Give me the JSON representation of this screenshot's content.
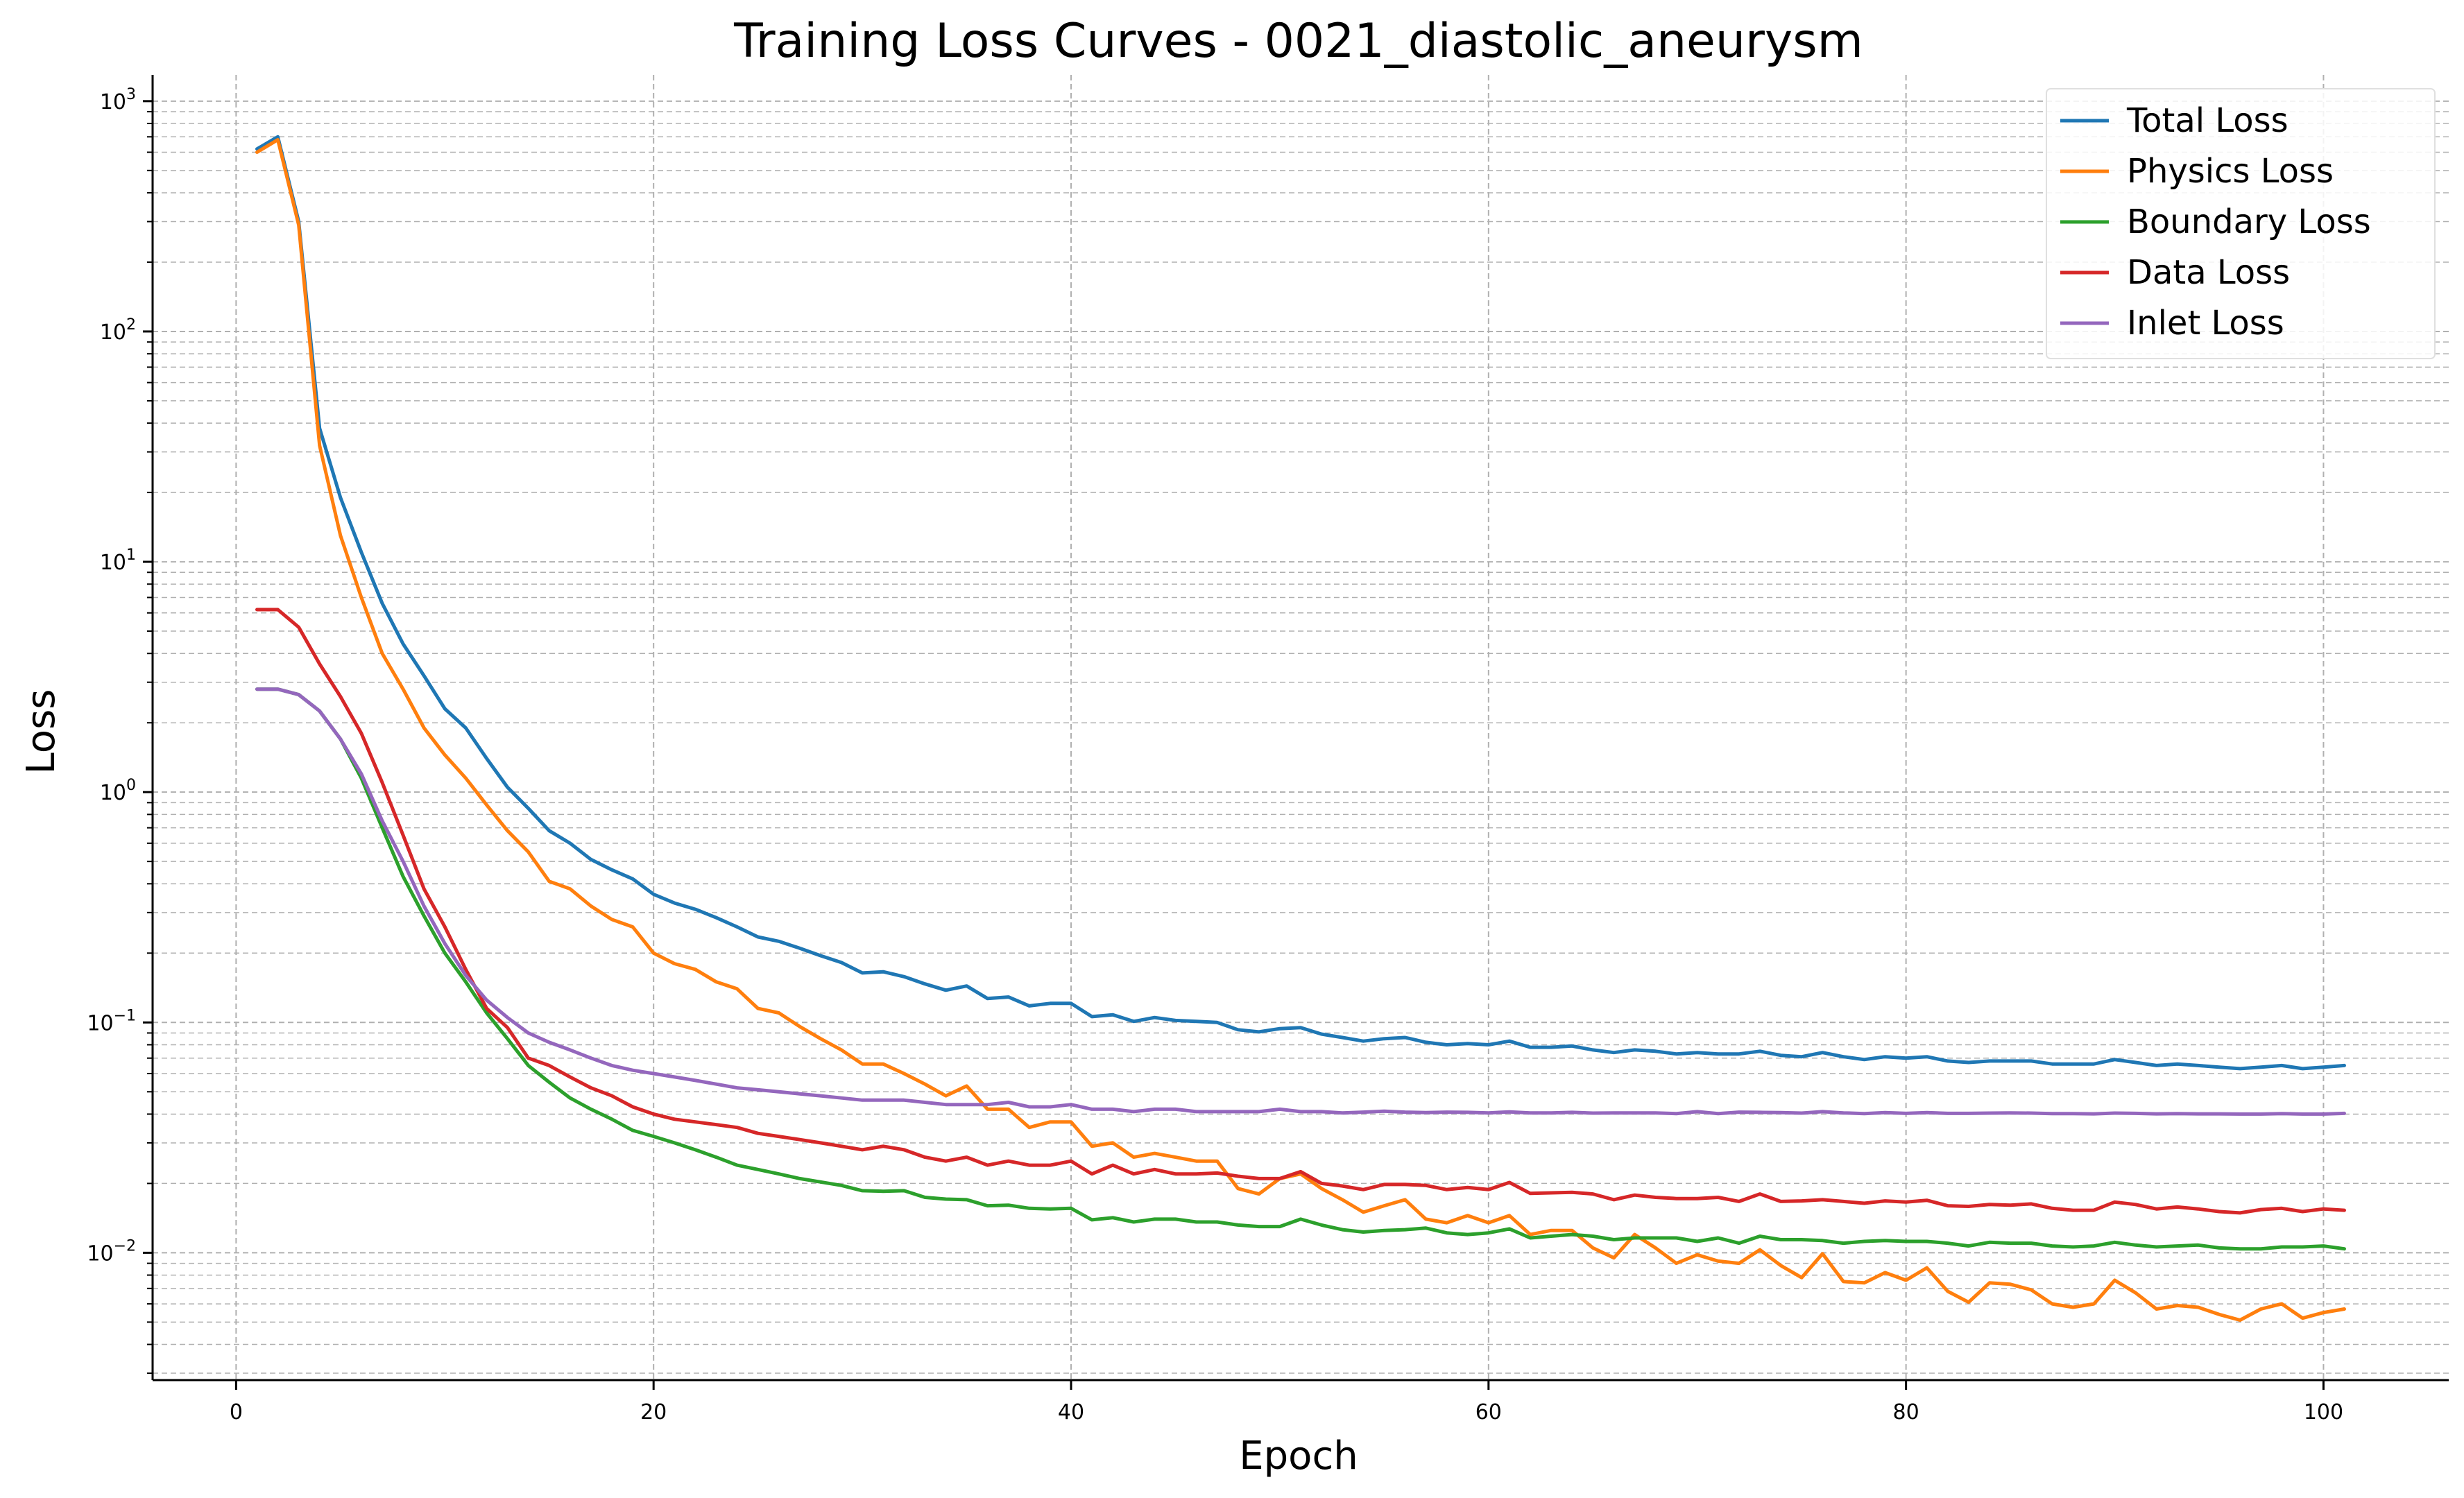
{
  "chart_data": {
    "type": "line",
    "title": "Training Loss Curves - 0021_diastolic_aneurysm",
    "xlabel": "Epoch",
    "ylabel": "Loss",
    "xlim": [
      -4,
      106
    ],
    "ylim": [
      0.0028,
      1300
    ],
    "yscale": "log",
    "grid": true,
    "legend_position": "top-right",
    "x_ticks": [
      0,
      20,
      40,
      60,
      80,
      100
    ],
    "y_ticks": [
      {
        "value": 1000,
        "base": "10",
        "exp": "3"
      },
      {
        "value": 100,
        "base": "10",
        "exp": "2"
      },
      {
        "value": 10,
        "base": "10",
        "exp": "1"
      },
      {
        "value": 1,
        "base": "10",
        "exp": "0"
      },
      {
        "value": 0.1,
        "base": "10",
        "exp": "−1"
      },
      {
        "value": 0.01,
        "base": "10",
        "exp": "−2"
      }
    ],
    "x_start": 1,
    "series": [
      {
        "name": "Total Loss",
        "color": "#1f77b4",
        "values": [
          620,
          700,
          300,
          38,
          19,
          11,
          6.6,
          4.4,
          3.2,
          2.3,
          1.9,
          1.4,
          1.05,
          0.85,
          0.68,
          0.6,
          0.51,
          0.46,
          0.42,
          0.36,
          0.33,
          0.31,
          0.285,
          0.26,
          0.235,
          0.225,
          0.21,
          0.195,
          0.182,
          0.164,
          0.166,
          0.158,
          0.147,
          0.138,
          0.144,
          0.127,
          0.129,
          0.118,
          0.121,
          0.121,
          0.106,
          0.108,
          0.101,
          0.105,
          0.102,
          0.101,
          0.1,
          0.093,
          0.091,
          0.094,
          0.095,
          0.089,
          0.086,
          0.083,
          0.085,
          0.086,
          0.082,
          0.08,
          0.081,
          0.08,
          0.083,
          0.078,
          0.078,
          0.079,
          0.076,
          0.074,
          0.076,
          0.075,
          0.073,
          0.074,
          0.073,
          0.073,
          0.075,
          0.072,
          0.071,
          0.074,
          0.071,
          0.069,
          0.071,
          0.07,
          0.071,
          0.068,
          0.067,
          0.068,
          0.068,
          0.068,
          0.066,
          0.066,
          0.066,
          0.069,
          0.067,
          0.065,
          0.066,
          0.065,
          0.064,
          0.063,
          0.064,
          0.065,
          0.063,
          0.064,
          0.065
        ]
      },
      {
        "name": "Physics Loss",
        "color": "#ff7f0e",
        "values": [
          600,
          680,
          290,
          32,
          13,
          7,
          4,
          2.8,
          1.9,
          1.45,
          1.15,
          0.88,
          0.68,
          0.55,
          0.41,
          0.38,
          0.32,
          0.28,
          0.26,
          0.2,
          0.18,
          0.17,
          0.15,
          0.14,
          0.115,
          0.11,
          0.096,
          0.085,
          0.076,
          0.066,
          0.066,
          0.06,
          0.054,
          0.048,
          0.053,
          0.042,
          0.042,
          0.035,
          0.037,
          0.037,
          0.029,
          0.03,
          0.026,
          0.027,
          0.026,
          0.025,
          0.025,
          0.019,
          0.018,
          0.021,
          0.022,
          0.019,
          0.017,
          0.015,
          0.016,
          0.017,
          0.014,
          0.0135,
          0.0145,
          0.0135,
          0.0145,
          0.012,
          0.0125,
          0.0125,
          0.0105,
          0.0095,
          0.012,
          0.0105,
          0.009,
          0.0098,
          0.0092,
          0.009,
          0.0103,
          0.0088,
          0.0078,
          0.0099,
          0.0075,
          0.0074,
          0.0082,
          0.0076,
          0.0086,
          0.0068,
          0.0061,
          0.0074,
          0.0073,
          0.0069,
          0.006,
          0.0058,
          0.006,
          0.0076,
          0.0067,
          0.0057,
          0.0059,
          0.0058,
          0.0054,
          0.0051,
          0.0057,
          0.006,
          0.0052,
          0.0055,
          0.0057
        ]
      },
      {
        "name": "Boundary Loss",
        "color": "#2ca02c",
        "values": [
          2.8,
          2.8,
          2.65,
          2.25,
          1.7,
          1.15,
          0.7,
          0.43,
          0.29,
          0.2,
          0.15,
          0.11,
          0.085,
          0.065,
          0.055,
          0.047,
          0.042,
          0.038,
          0.034,
          0.032,
          0.03,
          0.028,
          0.026,
          0.024,
          0.023,
          0.022,
          0.021,
          0.0203,
          0.0196,
          0.0186,
          0.0185,
          0.0186,
          0.0174,
          0.0171,
          0.017,
          0.016,
          0.0161,
          0.0156,
          0.0155,
          0.0156,
          0.0139,
          0.0142,
          0.0136,
          0.014,
          0.014,
          0.0136,
          0.0136,
          0.0132,
          0.013,
          0.013,
          0.014,
          0.0132,
          0.0126,
          0.0123,
          0.0125,
          0.0126,
          0.0128,
          0.0122,
          0.012,
          0.0122,
          0.0127,
          0.0116,
          0.0118,
          0.012,
          0.0118,
          0.0114,
          0.0116,
          0.0116,
          0.0116,
          0.0112,
          0.0116,
          0.011,
          0.0118,
          0.0114,
          0.0114,
          0.0113,
          0.011,
          0.0112,
          0.0113,
          0.0112,
          0.0112,
          0.011,
          0.0107,
          0.0111,
          0.011,
          0.011,
          0.0107,
          0.0106,
          0.0107,
          0.0111,
          0.0108,
          0.0106,
          0.0107,
          0.0108,
          0.0105,
          0.0104,
          0.0104,
          0.0106,
          0.0106,
          0.0107,
          0.0104
        ]
      },
      {
        "name": "Data Loss",
        "color": "#d62728",
        "values": [
          6.2,
          6.2,
          5.2,
          3.6,
          2.6,
          1.8,
          1.1,
          0.65,
          0.38,
          0.26,
          0.17,
          0.115,
          0.095,
          0.07,
          0.065,
          0.058,
          0.052,
          0.048,
          0.043,
          0.04,
          0.038,
          0.037,
          0.036,
          0.035,
          0.033,
          0.032,
          0.031,
          0.03,
          0.029,
          0.028,
          0.029,
          0.028,
          0.026,
          0.025,
          0.026,
          0.024,
          0.025,
          0.024,
          0.024,
          0.025,
          0.022,
          0.024,
          0.022,
          0.023,
          0.022,
          0.022,
          0.0222,
          0.0215,
          0.021,
          0.021,
          0.0225,
          0.02,
          0.0195,
          0.0188,
          0.0198,
          0.0198,
          0.0196,
          0.0188,
          0.0192,
          0.0188,
          0.0202,
          0.0181,
          0.0182,
          0.0183,
          0.018,
          0.017,
          0.0178,
          0.0174,
          0.0172,
          0.0172,
          0.0174,
          0.0167,
          0.018,
          0.0167,
          0.0168,
          0.017,
          0.0167,
          0.0164,
          0.0168,
          0.0166,
          0.0169,
          0.016,
          0.0159,
          0.0162,
          0.0161,
          0.0163,
          0.0156,
          0.0153,
          0.0153,
          0.0166,
          0.0162,
          0.0155,
          0.0158,
          0.0155,
          0.0151,
          0.0149,
          0.0154,
          0.0156,
          0.0151,
          0.0155,
          0.0153
        ]
      },
      {
        "name": "Inlet Loss",
        "color": "#9467bd",
        "values": [
          2.8,
          2.8,
          2.65,
          2.25,
          1.7,
          1.2,
          0.75,
          0.5,
          0.32,
          0.22,
          0.16,
          0.125,
          0.105,
          0.09,
          0.082,
          0.076,
          0.07,
          0.065,
          0.062,
          0.06,
          0.058,
          0.056,
          0.054,
          0.052,
          0.051,
          0.05,
          0.049,
          0.048,
          0.047,
          0.046,
          0.046,
          0.046,
          0.045,
          0.044,
          0.044,
          0.044,
          0.045,
          0.043,
          0.043,
          0.044,
          0.042,
          0.042,
          0.041,
          0.042,
          0.042,
          0.041,
          0.041,
          0.041,
          0.041,
          0.042,
          0.041,
          0.041,
          0.0405,
          0.0408,
          0.0412,
          0.0408,
          0.0406,
          0.0408,
          0.0407,
          0.0405,
          0.0409,
          0.0405,
          0.0405,
          0.0407,
          0.0404,
          0.0405,
          0.0405,
          0.0405,
          0.0402,
          0.041,
          0.0402,
          0.0408,
          0.0407,
          0.0406,
          0.0404,
          0.041,
          0.0405,
          0.0402,
          0.0406,
          0.0403,
          0.0406,
          0.0403,
          0.0403,
          0.0404,
          0.0405,
          0.0404,
          0.0402,
          0.0402,
          0.0401,
          0.0404,
          0.0403,
          0.0401,
          0.0402,
          0.0401,
          0.0401,
          0.04,
          0.04,
          0.0402,
          0.04,
          0.04,
          0.0403
        ]
      }
    ]
  }
}
